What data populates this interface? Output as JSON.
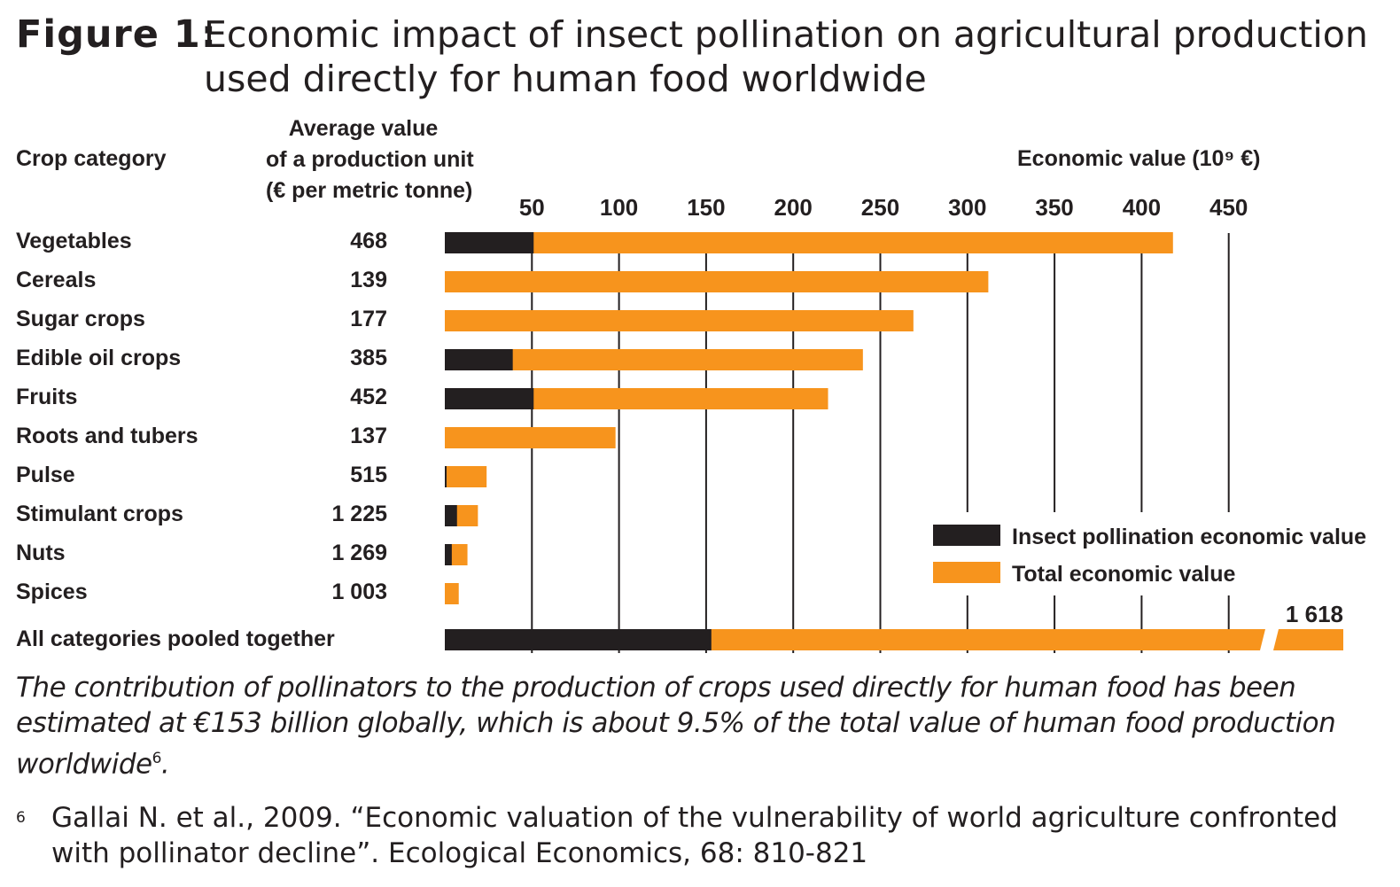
{
  "figure": {
    "label": "Figure 1:",
    "title": "Economic impact of insect pollination on agricultural production used directly for human food worldwide"
  },
  "headers": {
    "crop_category": "Crop category",
    "avg_value_line1": "Average value",
    "avg_value_line2": "of a production unit",
    "avg_value_line3": "(€ per metric tonne)",
    "economic_value": "Economic value (10⁹ €)"
  },
  "colors": {
    "insect": "#231f20",
    "total": "#f7941d",
    "grid": "#231f20"
  },
  "chart_data": {
    "type": "bar",
    "orientation": "horizontal",
    "title": "Economic impact of insect pollination on agricultural production used directly for human food worldwide",
    "xlabel": "Economic value (10⁹ €)",
    "xlim": [
      0,
      450
    ],
    "xticks": [
      50,
      100,
      150,
      200,
      250,
      300,
      350,
      400,
      450
    ],
    "categories": [
      "Vegetables",
      "Cereals",
      "Sugar crops",
      "Edible oil crops",
      "Fruits",
      "Roots and tubers",
      "Pulse",
      "Stimulant crops",
      "Nuts",
      "Spices"
    ],
    "avg_value_per_tonne": [
      "468",
      "139",
      "177",
      "385",
      "452",
      "137",
      "515",
      "1 225",
      "1 269",
      "1 003"
    ],
    "series": [
      {
        "name": "Insect pollination economic value",
        "values": [
          51,
          0,
          0,
          39,
          51,
          0,
          1,
          7,
          4,
          0
        ]
      },
      {
        "name": "Total economic value",
        "values": [
          418,
          312,
          269,
          240,
          220,
          98,
          24,
          19,
          13,
          8
        ]
      }
    ],
    "pooled": {
      "label": "All categories pooled together",
      "insect": 153,
      "total": 1618,
      "total_label": "1 618"
    },
    "legend": [
      {
        "name": "Insect pollination economic value",
        "color": "#231f20"
      },
      {
        "name": "Total economic value",
        "color": "#f7941d"
      }
    ],
    "legend_position": "bottom-right"
  },
  "caption": {
    "text": "The contribution of pollinators to the production of crops used directly for human food has been estimated at €153 billion globally, which is about 9.5% of the total value of human food production worldwide",
    "ref": "6",
    "end": "."
  },
  "footnote": {
    "mark": "6",
    "text": "Gallai N. et al., 2009. “Economic valuation of the vulnerability of world agriculture confronted with pollinator decline”. Ecological  Economics, 68: 810-821"
  }
}
